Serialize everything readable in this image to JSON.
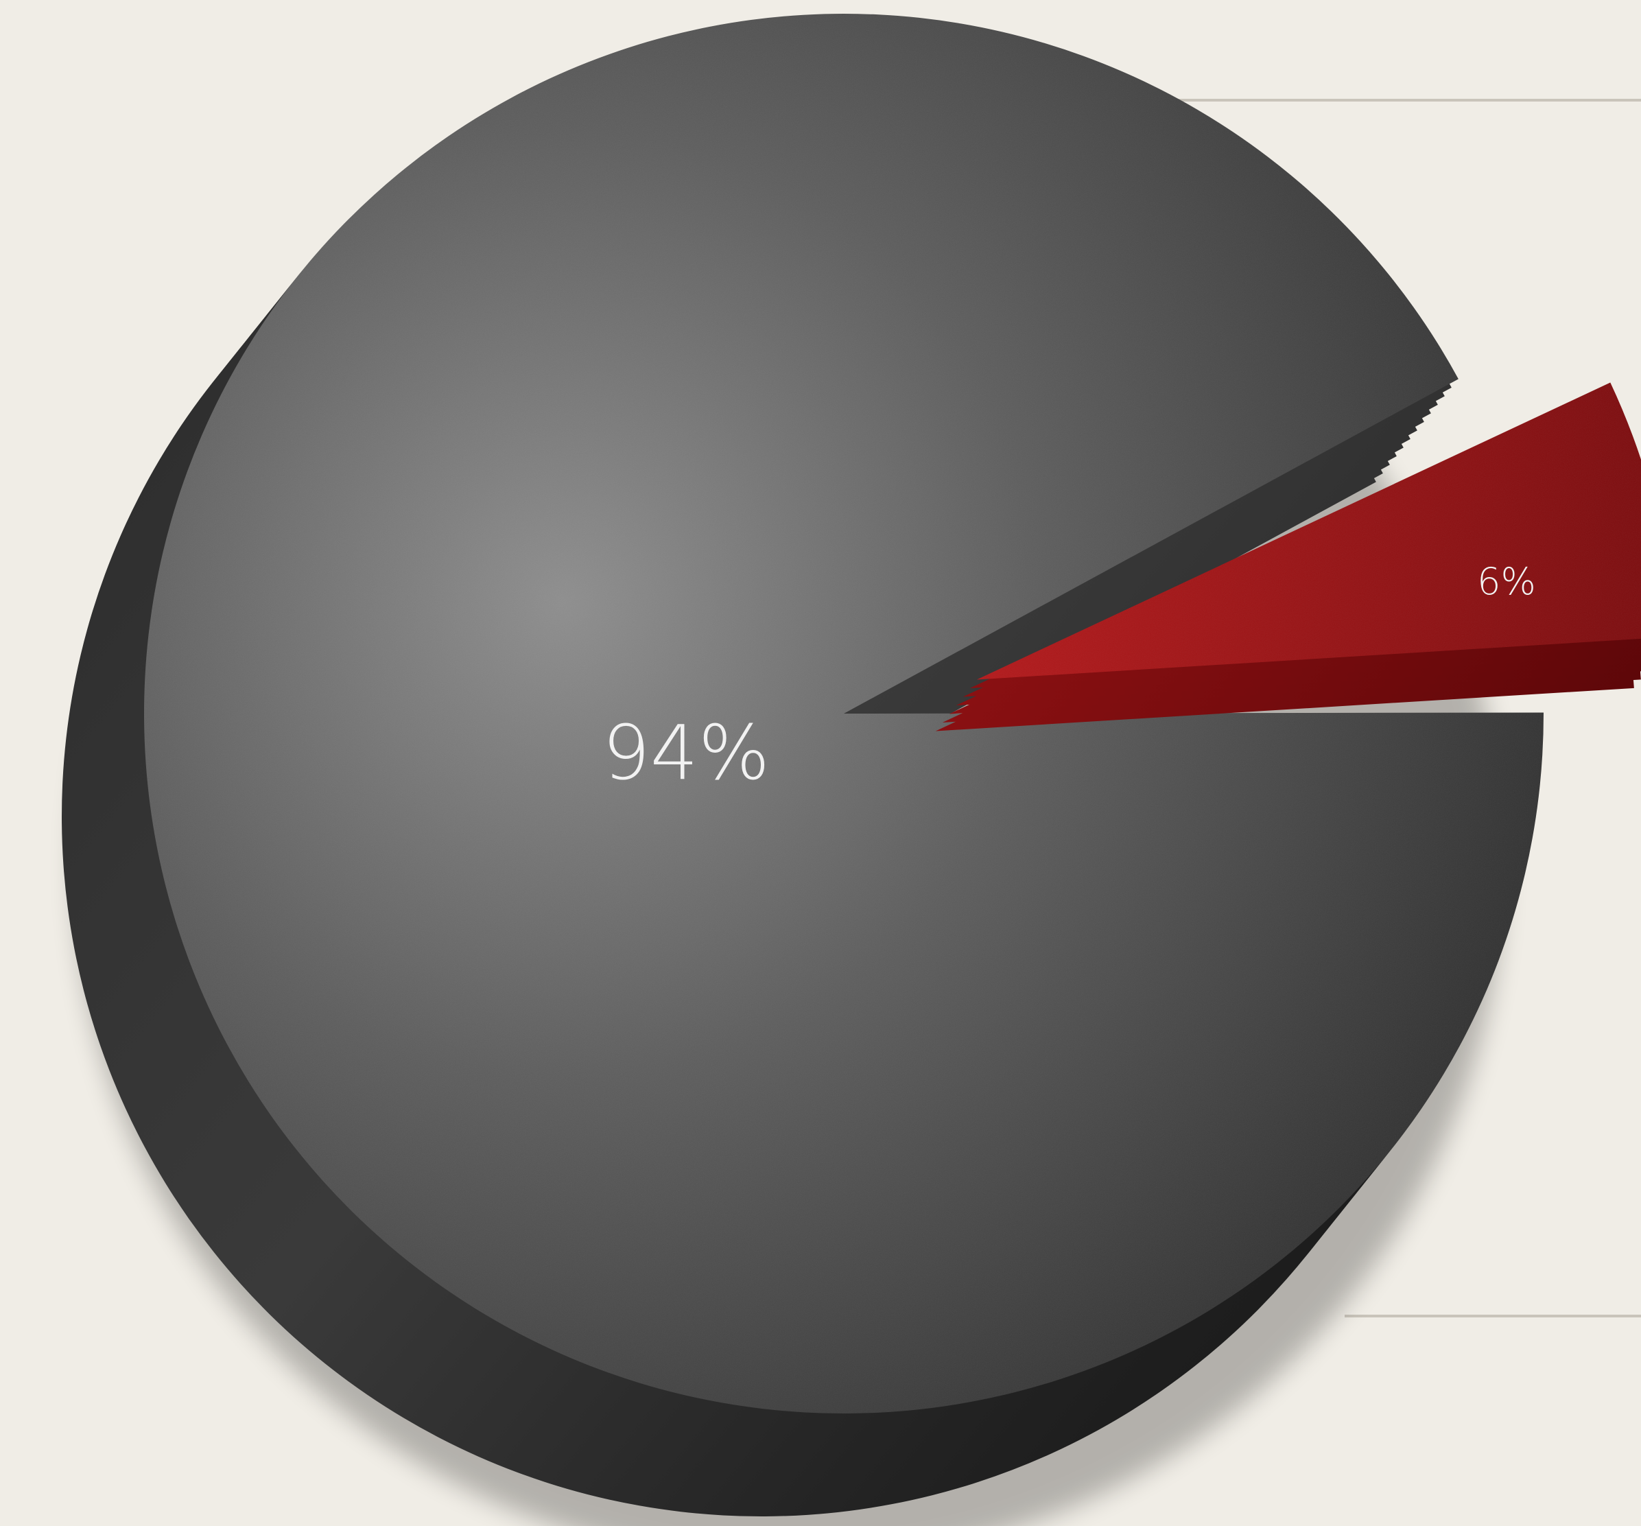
{
  "chart_data": {
    "type": "pie",
    "title": "",
    "style": "3d-exploded",
    "slices": [
      {
        "label": "94%",
        "value": 94,
        "color": "#4a4a4a",
        "exploded": false
      },
      {
        "label": "6%",
        "value": 6,
        "color": "#9a1416",
        "exploded": true
      }
    ]
  },
  "colors": {
    "background": "#f0ede6",
    "guide_line": "#c9c4ba",
    "label_text": "#f2f2f2"
  }
}
